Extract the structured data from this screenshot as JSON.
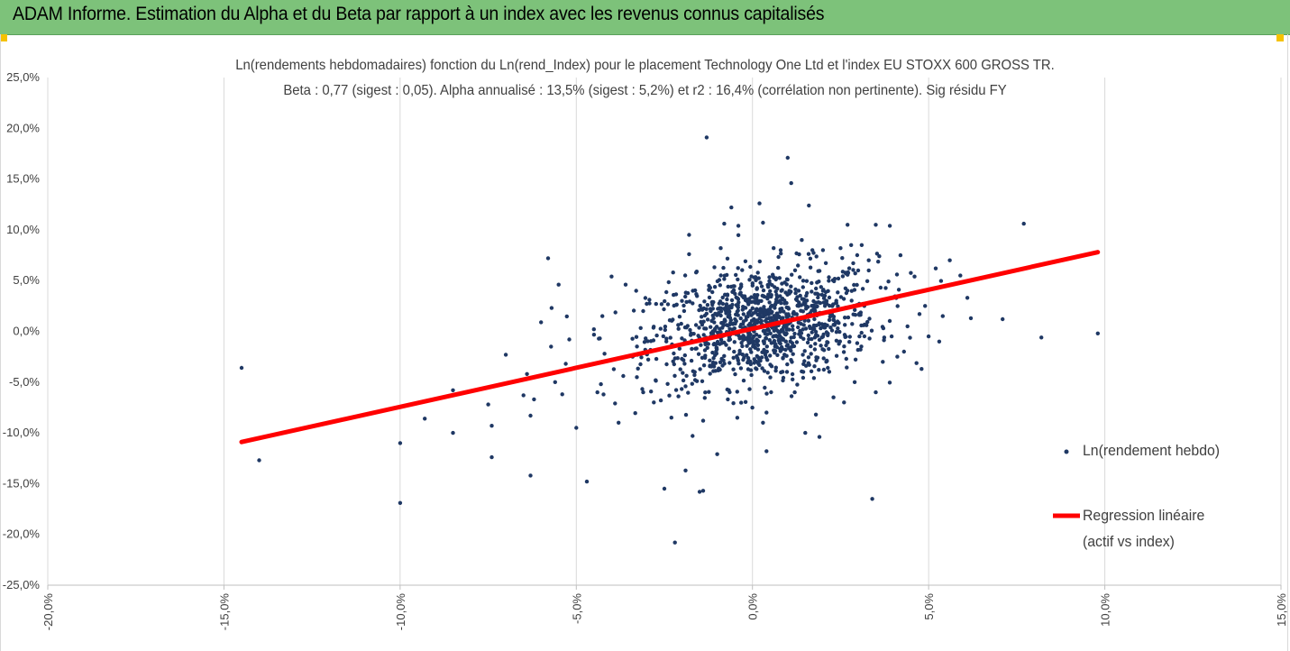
{
  "header": {
    "title": "ADAM Informe. Estimation du Alpha et du Beta par rapport à un index avec les revenus connus capitalisés"
  },
  "colors": {
    "banner": "#7dc27a",
    "corner": "#f5c200",
    "points": "#1f3864",
    "regression": "#ff0000",
    "grid": "#d9d9d9"
  },
  "chart_data": {
    "type": "scatter",
    "title_line1": "Ln(rendements hebdomadaires) fonction du Ln(rend_Index) pour le placement Technology One Ltd et l'index EU STOXX 600 GROSS TR.",
    "title_line2": "Beta : 0,77 (sigest : 0,05). Alpha annualisé : 13,5% (sigest : 5,2%) et r2 : 16,4% (corrélation non pertinente). Sig résidu FY",
    "xlim": [
      -0.2,
      0.15
    ],
    "ylim": [
      -0.25,
      0.25
    ],
    "x_ticks": [
      "-20,0%",
      "-15,0%",
      "-10,0%",
      "-5,0%",
      "0,0%",
      "5,0%",
      "10,0%",
      "15,0%"
    ],
    "y_ticks": [
      "25,0%",
      "20,0%",
      "15,0%",
      "10,0%",
      "5,0%",
      "0,0%",
      "-5,0%",
      "-10,0%",
      "-15,0%",
      "-20,0%",
      "-25,0%"
    ],
    "grid": "vertical",
    "legend_position": "right",
    "series": [
      {
        "name": "Ln(rendement hebdo)",
        "kind": "scatter",
        "outliers": [
          [
            -0.145,
            -0.036
          ],
          [
            -0.14,
            -0.127
          ],
          [
            -0.1,
            -0.11
          ],
          [
            -0.1,
            -0.169
          ],
          [
            -0.093,
            -0.086
          ],
          [
            -0.085,
            -0.1
          ],
          [
            -0.085,
            -0.058
          ],
          [
            -0.074,
            -0.124
          ],
          [
            -0.074,
            -0.093
          ],
          [
            -0.075,
            -0.072
          ],
          [
            -0.07,
            -0.023
          ],
          [
            -0.065,
            -0.063
          ],
          [
            -0.064,
            -0.042
          ],
          [
            -0.063,
            -0.142
          ],
          [
            -0.063,
            -0.083
          ],
          [
            -0.062,
            -0.067
          ],
          [
            -0.06,
            0.009
          ],
          [
            -0.058,
            0.072
          ],
          [
            -0.057,
            0.023
          ],
          [
            -0.056,
            -0.05
          ],
          [
            -0.055,
            0.046
          ],
          [
            -0.054,
            -0.062
          ],
          [
            -0.053,
            -0.032
          ],
          [
            -0.052,
            -0.008
          ],
          [
            -0.05,
            -0.095
          ],
          [
            -0.047,
            -0.148
          ],
          [
            -0.045,
            0.002
          ],
          [
            -0.044,
            -0.06
          ],
          [
            -0.043,
            -0.052
          ],
          [
            -0.042,
            -0.022
          ],
          [
            -0.04,
            0.054
          ],
          [
            -0.039,
            -0.071
          ],
          [
            -0.038,
            -0.09
          ],
          [
            -0.036,
            0.046
          ],
          [
            -0.034,
            -0.025
          ],
          [
            -0.033,
            0.04
          ],
          [
            -0.031,
            -0.06
          ],
          [
            -0.028,
            -0.07
          ],
          [
            -0.026,
            -0.068
          ],
          [
            -0.025,
            -0.155
          ],
          [
            -0.023,
            -0.085
          ],
          [
            -0.022,
            -0.208
          ],
          [
            -0.021,
            -0.064
          ],
          [
            -0.019,
            -0.137
          ],
          [
            -0.018,
            0.076
          ],
          [
            -0.018,
            0.095
          ],
          [
            -0.017,
            -0.103
          ],
          [
            -0.016,
            0.058
          ],
          [
            -0.015,
            -0.158
          ],
          [
            -0.014,
            -0.157
          ],
          [
            -0.014,
            -0.088
          ],
          [
            -0.013,
            0.191
          ],
          [
            -0.012,
            0.043
          ],
          [
            -0.01,
            -0.121
          ],
          [
            -0.009,
            0.082
          ],
          [
            -0.008,
            0.106
          ],
          [
            -0.007,
            -0.067
          ],
          [
            -0.006,
            0.122
          ],
          [
            -0.004,
            0.104
          ],
          [
            -0.002,
            0.069
          ],
          [
            0.002,
            0.126
          ],
          [
            0.003,
            -0.09
          ],
          [
            0.003,
            0.107
          ],
          [
            0.004,
            -0.08
          ],
          [
            0.004,
            -0.118
          ],
          [
            0.006,
            0.082
          ],
          [
            0.008,
            0.08
          ],
          [
            0.01,
            0.171
          ],
          [
            0.011,
            0.146
          ],
          [
            0.012,
            -0.06
          ],
          [
            0.014,
            0.09
          ],
          [
            0.015,
            -0.1
          ],
          [
            0.016,
            0.124
          ],
          [
            0.017,
            0.08
          ],
          [
            0.018,
            -0.082
          ],
          [
            0.019,
            -0.104
          ],
          [
            0.02,
            0.08
          ],
          [
            0.023,
            -0.065
          ],
          [
            0.025,
            0.082
          ],
          [
            0.026,
            -0.07
          ],
          [
            0.028,
            0.085
          ],
          [
            0.029,
            -0.05
          ],
          [
            0.03,
            0.06
          ],
          [
            0.031,
            0.085
          ],
          [
            0.033,
            0.07
          ],
          [
            0.035,
            -0.06
          ],
          [
            0.036,
            0.074
          ],
          [
            0.037,
            -0.03
          ],
          [
            0.039,
            0.104
          ],
          [
            0.041,
            0.056
          ],
          [
            0.042,
            0.075
          ],
          [
            0.043,
            -0.02
          ],
          [
            0.046,
            0.054
          ],
          [
            0.048,
            -0.037
          ],
          [
            0.049,
            0.025
          ],
          [
            0.05,
            -0.005
          ],
          [
            0.052,
            0.062
          ],
          [
            0.053,
            -0.01
          ],
          [
            0.054,
            0.015
          ],
          [
            0.056,
            0.07
          ],
          [
            0.059,
            0.055
          ],
          [
            0.061,
            0.033
          ],
          [
            0.062,
            0.013
          ],
          [
            0.071,
            0.012
          ],
          [
            0.077,
            0.106
          ],
          [
            0.082,
            -0.006
          ],
          [
            0.098,
            -0.002
          ],
          [
            0.035,
            0.105
          ],
          [
            -0.031,
            0.02
          ],
          [
            0.027,
            0.105
          ],
          [
            0.044,
            0.005
          ],
          [
            0.034,
            -0.165
          ],
          [
            0.02,
            0.04
          ],
          [
            -0.02,
            0.03
          ],
          [
            0.033,
            0.06
          ]
        ],
        "cluster": {
          "count": 1100,
          "center_x": 0.003,
          "center_y": 0.006,
          "sd_x": 0.016,
          "sd_y": 0.028
        }
      },
      {
        "name": "Regression linéaire",
        "name_line2": "(actif vs index)",
        "kind": "line",
        "x": [
          -0.145,
          0.098
        ],
        "y": [
          -0.109,
          0.078
        ]
      }
    ]
  }
}
